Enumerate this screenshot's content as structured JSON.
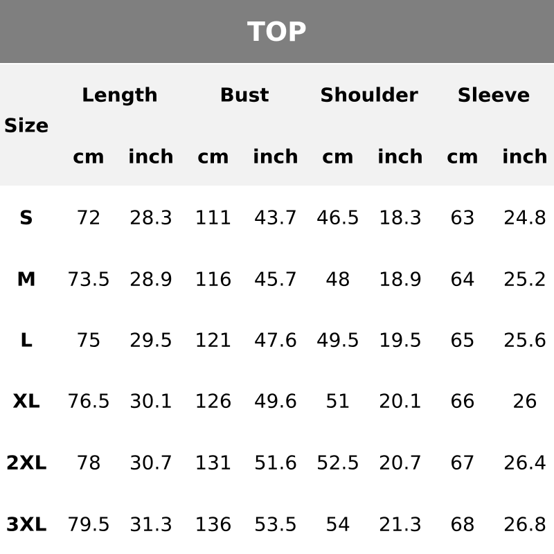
{
  "title": "TOP",
  "size_label": "Size",
  "groups": [
    "Length",
    "Bust",
    "Shoulder",
    "Sleeve"
  ],
  "units": [
    "cm",
    "inch"
  ],
  "rows": [
    {
      "size": "S",
      "values": [
        "72",
        "28.3",
        "111",
        "43.7",
        "46.5",
        "18.3",
        "63",
        "24.8"
      ]
    },
    {
      "size": "M",
      "values": [
        "73.5",
        "28.9",
        "116",
        "45.7",
        "48",
        "18.9",
        "64",
        "25.2"
      ]
    },
    {
      "size": "L",
      "values": [
        "75",
        "29.5",
        "121",
        "47.6",
        "49.5",
        "19.5",
        "65",
        "25.6"
      ]
    },
    {
      "size": "XL",
      "values": [
        "76.5",
        "30.1",
        "126",
        "49.6",
        "51",
        "20.1",
        "66",
        "26"
      ]
    },
    {
      "size": "2XL",
      "values": [
        "78",
        "30.7",
        "131",
        "51.6",
        "52.5",
        "20.7",
        "67",
        "26.4"
      ]
    },
    {
      "size": "3XL",
      "values": [
        "79.5",
        "31.3",
        "136",
        "53.5",
        "54",
        "21.3",
        "68",
        "26.8"
      ]
    }
  ],
  "colors": {
    "title_bar": "#7f7f7f",
    "header_bg": "#f2f2f2"
  }
}
